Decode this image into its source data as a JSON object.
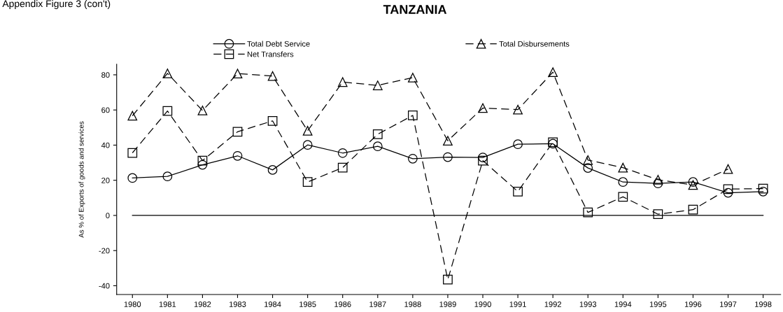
{
  "chart_data": {
    "type": "line",
    "title": "TANZANIA",
    "ylabel": "As % of Exports of goods and services",
    "annotations": [
      "Appendix Figure 3 (con't)"
    ],
    "categories": [
      "1980",
      "1981",
      "1982",
      "1983",
      "1984",
      "1985",
      "1986",
      "1987",
      "1988",
      "1989",
      "1990",
      "1991",
      "1992",
      "1993",
      "1994",
      "1995",
      "1996",
      "1997",
      "1998"
    ],
    "series": [
      {
        "name": "Total Debt Service",
        "color": "#000000",
        "marker": "circle",
        "line_style": "solid",
        "values": [
          21.3,
          22.2,
          28.8,
          33.9,
          25.9,
          40.1,
          35.5,
          39.3,
          32.3,
          33.2,
          33.0,
          40.5,
          40.8,
          27.0,
          19.0,
          18.2,
          19.0,
          12.9,
          13.6
        ]
      },
      {
        "name": "Net Transfers",
        "color": "#000000",
        "marker": "square",
        "line_style": "dashed",
        "values": [
          35.6,
          59.4,
          31.2,
          47.6,
          53.8,
          19.0,
          27.2,
          46.2,
          56.9,
          -36.5,
          31.2,
          13.6,
          41.6,
          1.7,
          10.6,
          0.7,
          3.3,
          15.0,
          15.3
        ]
      },
      {
        "name": "Total Disbursements",
        "color": "#000000",
        "marker": "triangle",
        "line_style": "dashed",
        "values": [
          56.7,
          80.8,
          59.7,
          80.7,
          79.3,
          48.2,
          75.9,
          74.0,
          78.4,
          42.5,
          61.1,
          60.2,
          81.5,
          31.5,
          27.2,
          20.3,
          17.3,
          26.4,
          null
        ]
      }
    ],
    "ylim": [
      -45,
      86
    ],
    "yticks": [
      -40,
      -20,
      0,
      20,
      40,
      60,
      80
    ],
    "ref_lines": [
      {
        "axis": "y",
        "value": 0,
        "color": "#000000",
        "line_style": "solid"
      }
    ],
    "grid": false,
    "legend": "top"
  }
}
